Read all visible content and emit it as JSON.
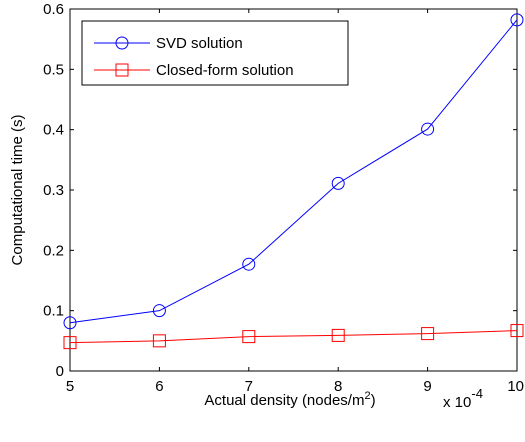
{
  "chart_data": {
    "type": "line",
    "title": "",
    "xlabel_main": "Actual density (nodes/m",
    "xlabel_sup": "2",
    "xlabel_end": ")",
    "ylabel": "Computational time (s)",
    "x_multiplier_base": "x 10",
    "x_multiplier_exp": "-4",
    "xlim": [
      5,
      10
    ],
    "ylim": [
      0,
      0.6
    ],
    "x_ticks": [
      "5",
      "6",
      "7",
      "8",
      "9",
      "10"
    ],
    "y_ticks": [
      "0",
      "0.1",
      "0.2",
      "0.3",
      "0.4",
      "0.5",
      "0.6"
    ],
    "grid": false,
    "legend_position": "top-left",
    "x": [
      5,
      6,
      7,
      8,
      9,
      10
    ],
    "series": [
      {
        "name": "SVD solution",
        "color": "#0000ff",
        "marker": "circle",
        "values": [
          0.08,
          0.1,
          0.177,
          0.311,
          0.401,
          0.582
        ]
      },
      {
        "name": "Closed-form solution",
        "color": "#ff0000",
        "marker": "square",
        "values": [
          0.047,
          0.05,
          0.057,
          0.059,
          0.062,
          0.067
        ]
      }
    ]
  }
}
